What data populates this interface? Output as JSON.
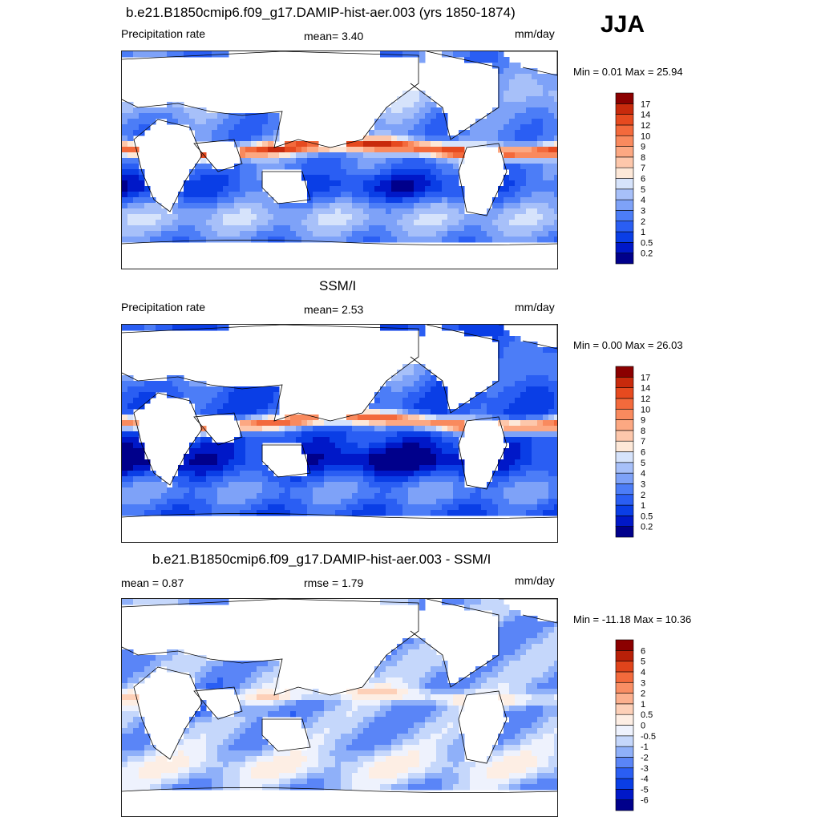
{
  "season": "JJA",
  "colors": {
    "precip_scale": [
      "#00008b",
      "#0018c8",
      "#0a3ee6",
      "#2a5ef3",
      "#4c7df7",
      "#7ea2f8",
      "#a7c0f9",
      "#d6e3fb",
      "#fde8d8",
      "#fdc7ab",
      "#fca882",
      "#f98a5e",
      "#f36a3c",
      "#e64a1f",
      "#c82a0c",
      "#8b0000"
    ],
    "diff_scale": [
      "#00008b",
      "#0018c8",
      "#0a3ee6",
      "#2a5ef3",
      "#5a85f7",
      "#8fb0f9",
      "#c5d7fb",
      "#eef2fd",
      "#fdeee4",
      "#fdd0b8",
      "#fcb08e",
      "#f98e64",
      "#f36a3c",
      "#e0441b",
      "#b82008",
      "#8b0000"
    ],
    "land": "#ffffff",
    "coast": "#000000"
  },
  "chart_data": [
    {
      "type": "heatmap",
      "title": "b.e21.B1850cmip6.f09_g17.DAMIP-hist-aer.003 (yrs 1850-1874)",
      "left_label": "Precipitation rate",
      "center_label": "mean=   3.40",
      "mean": 3.4,
      "units": "mm/day",
      "minmax_label": "Min =   0.01 Max =  25.94",
      "min": 0.01,
      "max": 25.94,
      "colorbar_levels": [
        "0.2",
        "0.5",
        "1",
        "2",
        "3",
        "4",
        "5",
        "6",
        "7",
        "8",
        "9",
        "10",
        "12",
        "14",
        "17"
      ]
    },
    {
      "type": "heatmap",
      "title": "SSM/I",
      "left_label": "Precipitation rate",
      "center_label": "mean=   2.53",
      "mean": 2.53,
      "units": "mm/day",
      "minmax_label": "Min =   0.00 Max =  26.03",
      "min": 0.0,
      "max": 26.03,
      "colorbar_levels": [
        "0.2",
        "0.5",
        "1",
        "2",
        "3",
        "4",
        "5",
        "6",
        "7",
        "8",
        "9",
        "10",
        "12",
        "14",
        "17"
      ]
    },
    {
      "type": "heatmap",
      "title": "b.e21.B1850cmip6.f09_g17.DAMIP-hist-aer.003 - SSM/I",
      "left_label": "mean =   0.87",
      "mean": 0.87,
      "center_label": "rmse =   1.79",
      "rmse": 1.79,
      "units": "mm/day",
      "minmax_label": "Min = -11.18 Max =  10.36",
      "min": -11.18,
      "max": 10.36,
      "colorbar_levels": [
        "-6",
        "-5",
        "-4",
        "-3",
        "-2",
        "-1",
        "-0.5",
        "0",
        "0.5",
        "1",
        "2",
        "3",
        "4",
        "5",
        "6"
      ]
    }
  ]
}
